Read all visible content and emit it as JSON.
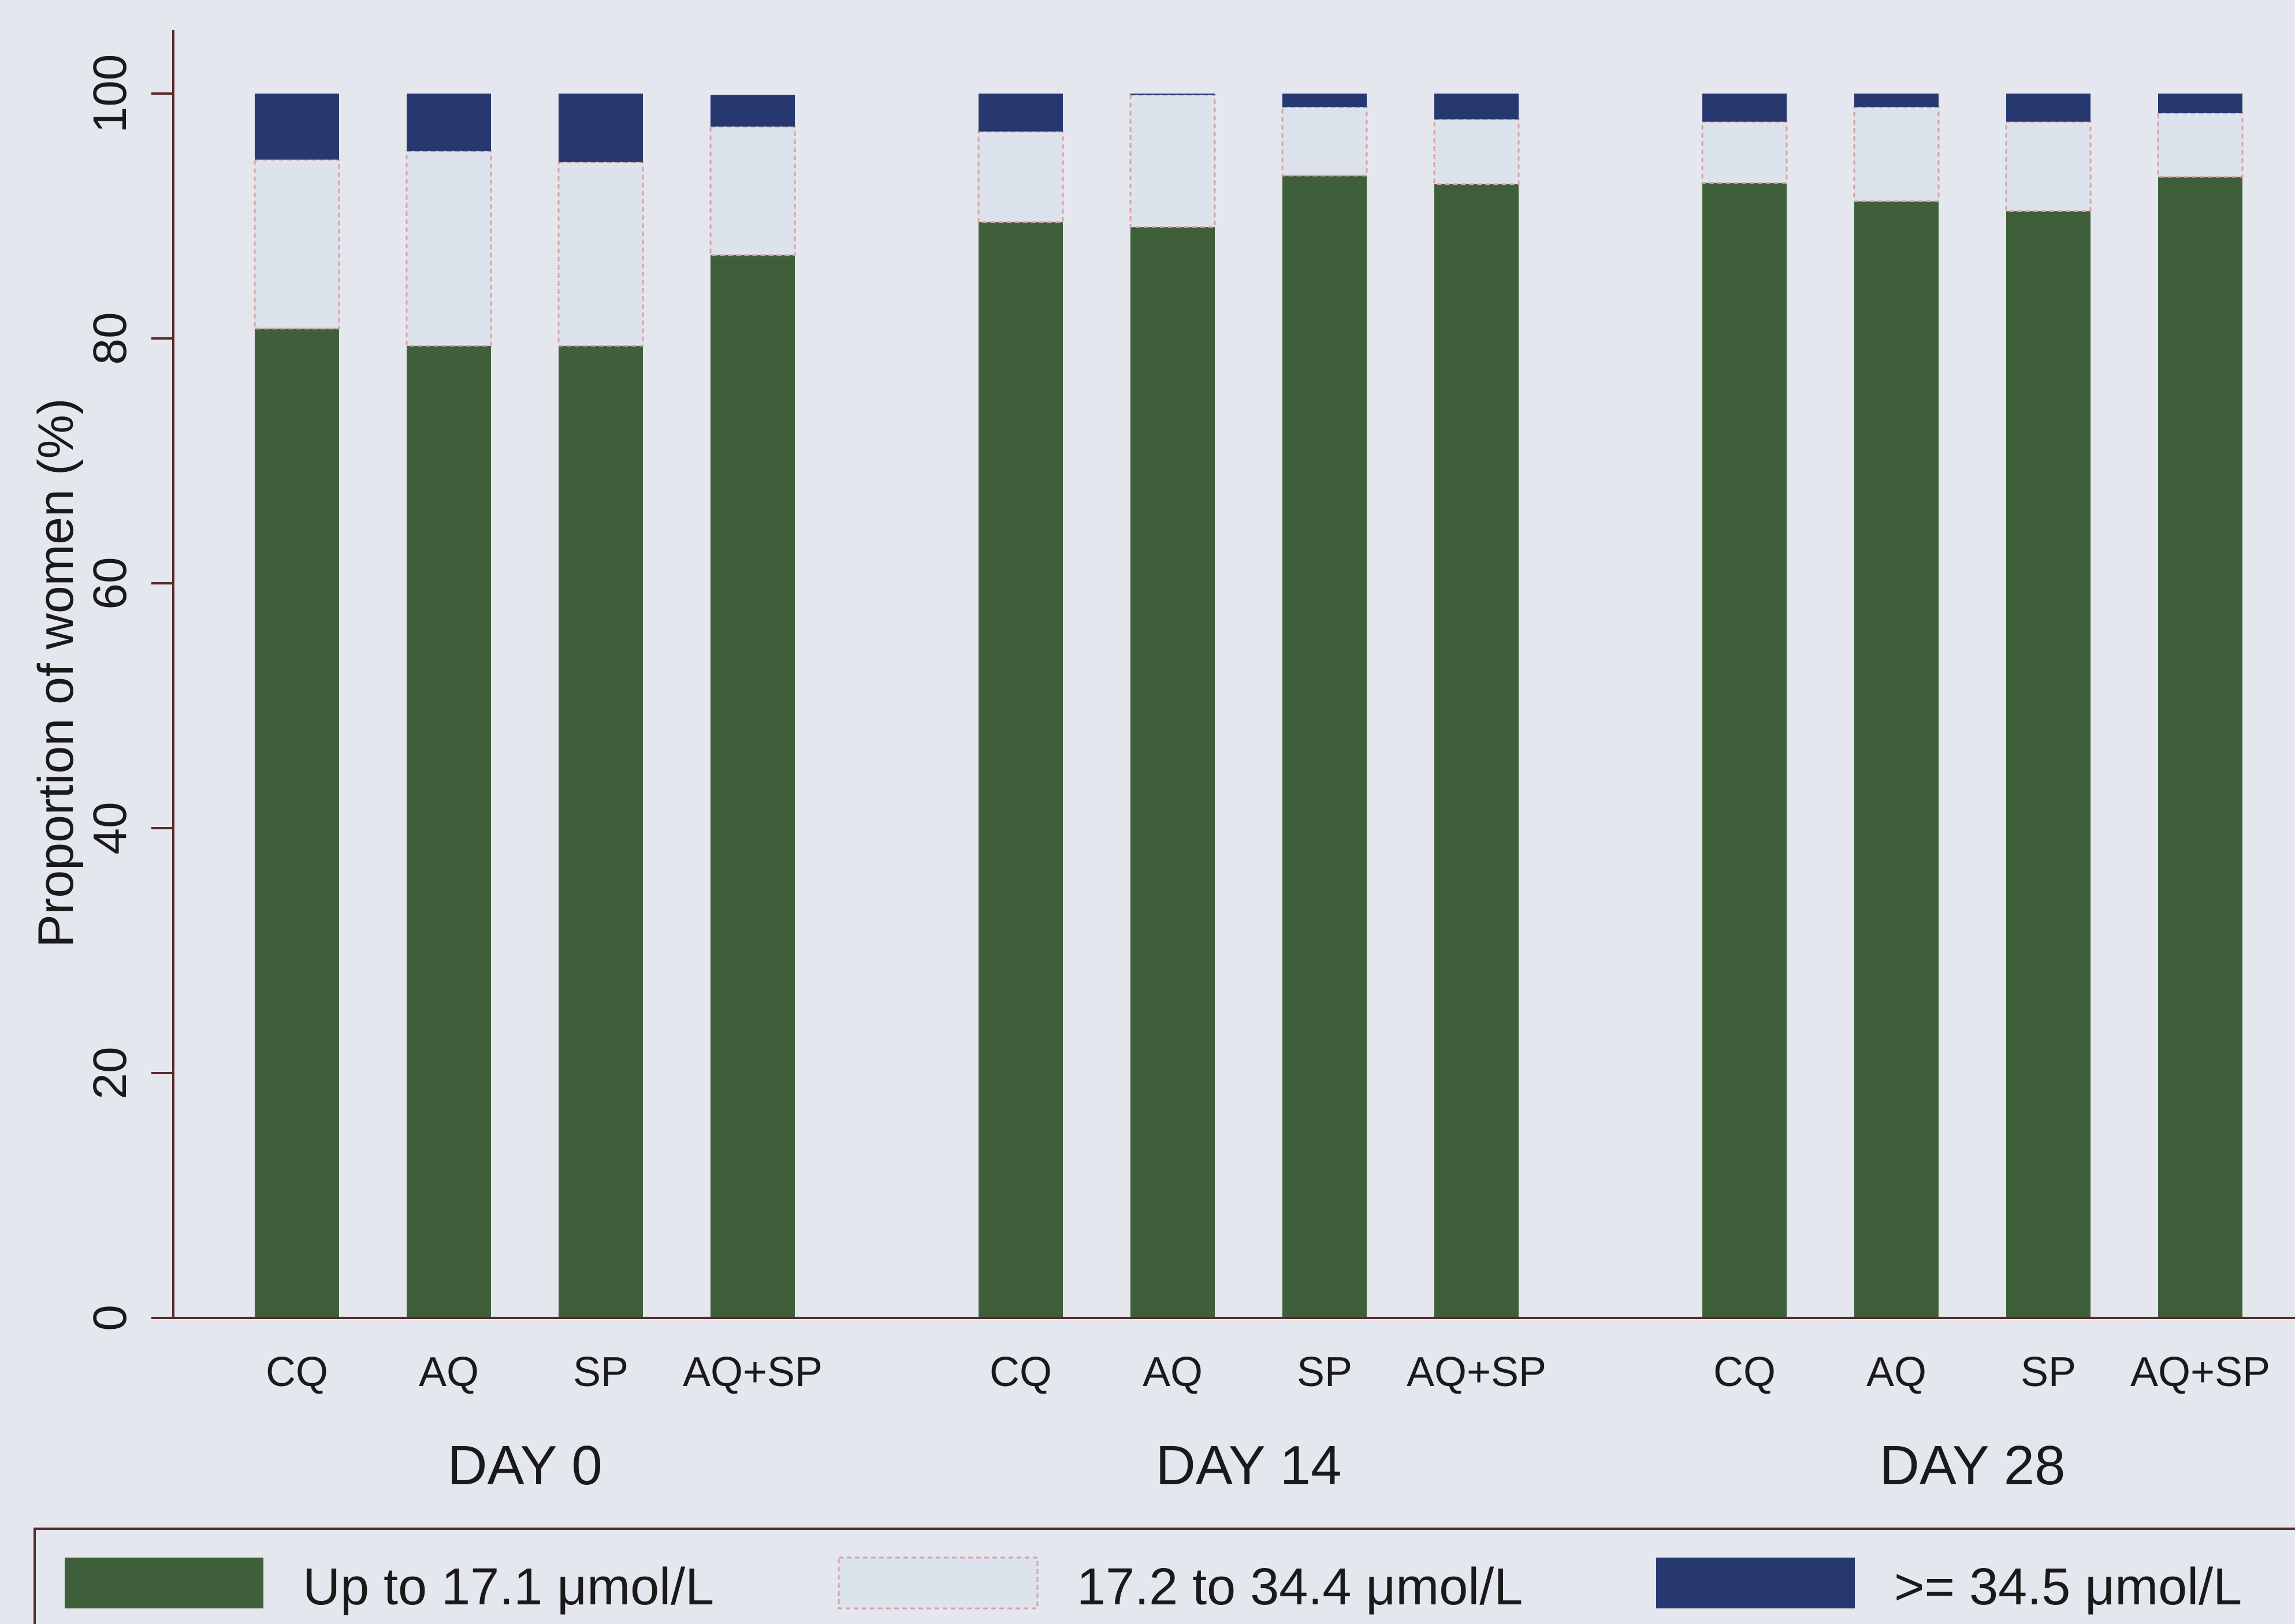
{
  "chart_data": {
    "type": "bar",
    "stacked": true,
    "ylabel": "Proportion of women (%)",
    "ylim": [
      0,
      100
    ],
    "yticks": [
      0,
      20,
      40,
      60,
      80,
      100
    ],
    "groups": [
      {
        "label": "DAY 0",
        "categories": [
          "CQ",
          "AQ",
          "SP",
          "AQ+SP"
        ]
      },
      {
        "label": "DAY 14",
        "categories": [
          "CQ",
          "AQ",
          "SP",
          "AQ+SP"
        ]
      },
      {
        "label": "DAY 28",
        "categories": [
          "CQ",
          "AQ",
          "SP",
          "AQ+SP"
        ]
      }
    ],
    "series": [
      {
        "name": "Up to 17.1 μmol/L",
        "color": "#3e5f3a",
        "values": [
          80.8,
          79.4,
          79.4,
          86.8,
          89.5,
          89.1,
          93.3,
          92.6,
          92.7,
          91.2,
          90.4,
          93.2
        ]
      },
      {
        "name": "17.2 to 34.4 μmol/L",
        "color": "#dde3ec",
        "values": [
          13.8,
          15.9,
          15.0,
          10.5,
          7.4,
          10.8,
          5.6,
          5.3,
          5.0,
          7.7,
          7.3,
          5.2
        ]
      },
      {
        "name": ">= 34.5 μmol/L",
        "color": "#26386f",
        "values": [
          5.4,
          4.7,
          5.6,
          2.6,
          3.1,
          0.1,
          1.1,
          2.1,
          2.3,
          1.1,
          2.3,
          1.6
        ]
      }
    ],
    "grid": false,
    "legend_position": "bottom"
  }
}
